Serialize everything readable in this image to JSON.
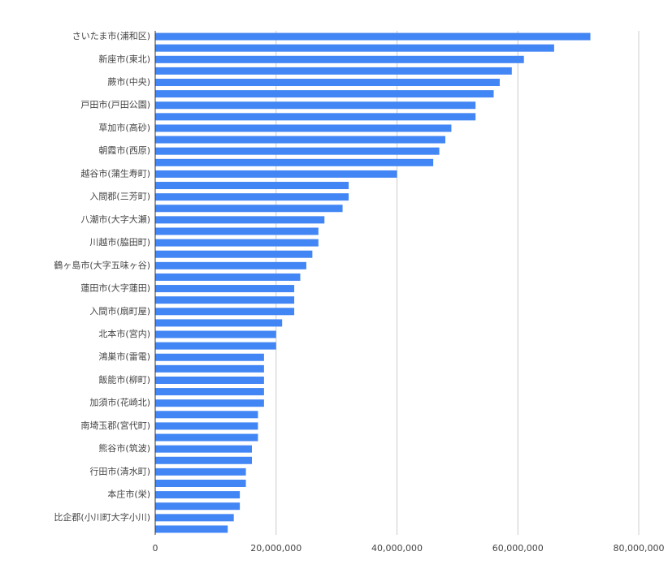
{
  "chart_data": {
    "type": "bar",
    "orientation": "horizontal",
    "color": "#4285f4",
    "categories": [
      "さいたま市(浦和区)",
      null,
      "新座市(東北)",
      null,
      "蕨市(中央)",
      null,
      "戸田市(戸田公園)",
      null,
      "草加市(高砂)",
      null,
      "朝霞市(西原)",
      null,
      "越谷市(蒲生寿町)",
      null,
      "入間郡(三芳町)",
      null,
      "八潮市(大字大瀬)",
      null,
      "川越市(脇田町)",
      null,
      "鶴ヶ島市(大字五味ヶ谷)",
      null,
      "蓮田市(大字蓮田)",
      null,
      "入間市(扇町屋)",
      null,
      "北本市(宮内)",
      null,
      "鴻巣市(雷電)",
      null,
      "飯能市(柳町)",
      null,
      "加須市(花崎北)",
      null,
      "南埼玉郡(宮代町)",
      null,
      "熊谷市(筑波)",
      null,
      "行田市(清水町)",
      null,
      "本庄市(栄)",
      null,
      "比企郡(小川町大字小川)",
      null
    ],
    "values": [
      72000000,
      66000000,
      61000000,
      59000000,
      57000000,
      56000000,
      53000000,
      53000000,
      49000000,
      48000000,
      47000000,
      46000000,
      40000000,
      32000000,
      32000000,
      31000000,
      28000000,
      27000000,
      27000000,
      26000000,
      25000000,
      24000000,
      23000000,
      23000000,
      23000000,
      21000000,
      20000000,
      20000000,
      18000000,
      18000000,
      18000000,
      18000000,
      18000000,
      17000000,
      17000000,
      17000000,
      16000000,
      16000000,
      15000000,
      15000000,
      14000000,
      14000000,
      13000000,
      12000000
    ],
    "xlim": [
      0,
      80000000
    ],
    "xticks": [
      0,
      {
        "value": 20000000,
        "label": "20,000,000"
      },
      {
        "value": 40000000,
        "label": "40,000,000"
      },
      {
        "value": 60000000,
        "label": "60,000,000"
      },
      {
        "value": 80000000,
        "label": "80,000,000"
      }
    ],
    "grid": true
  }
}
